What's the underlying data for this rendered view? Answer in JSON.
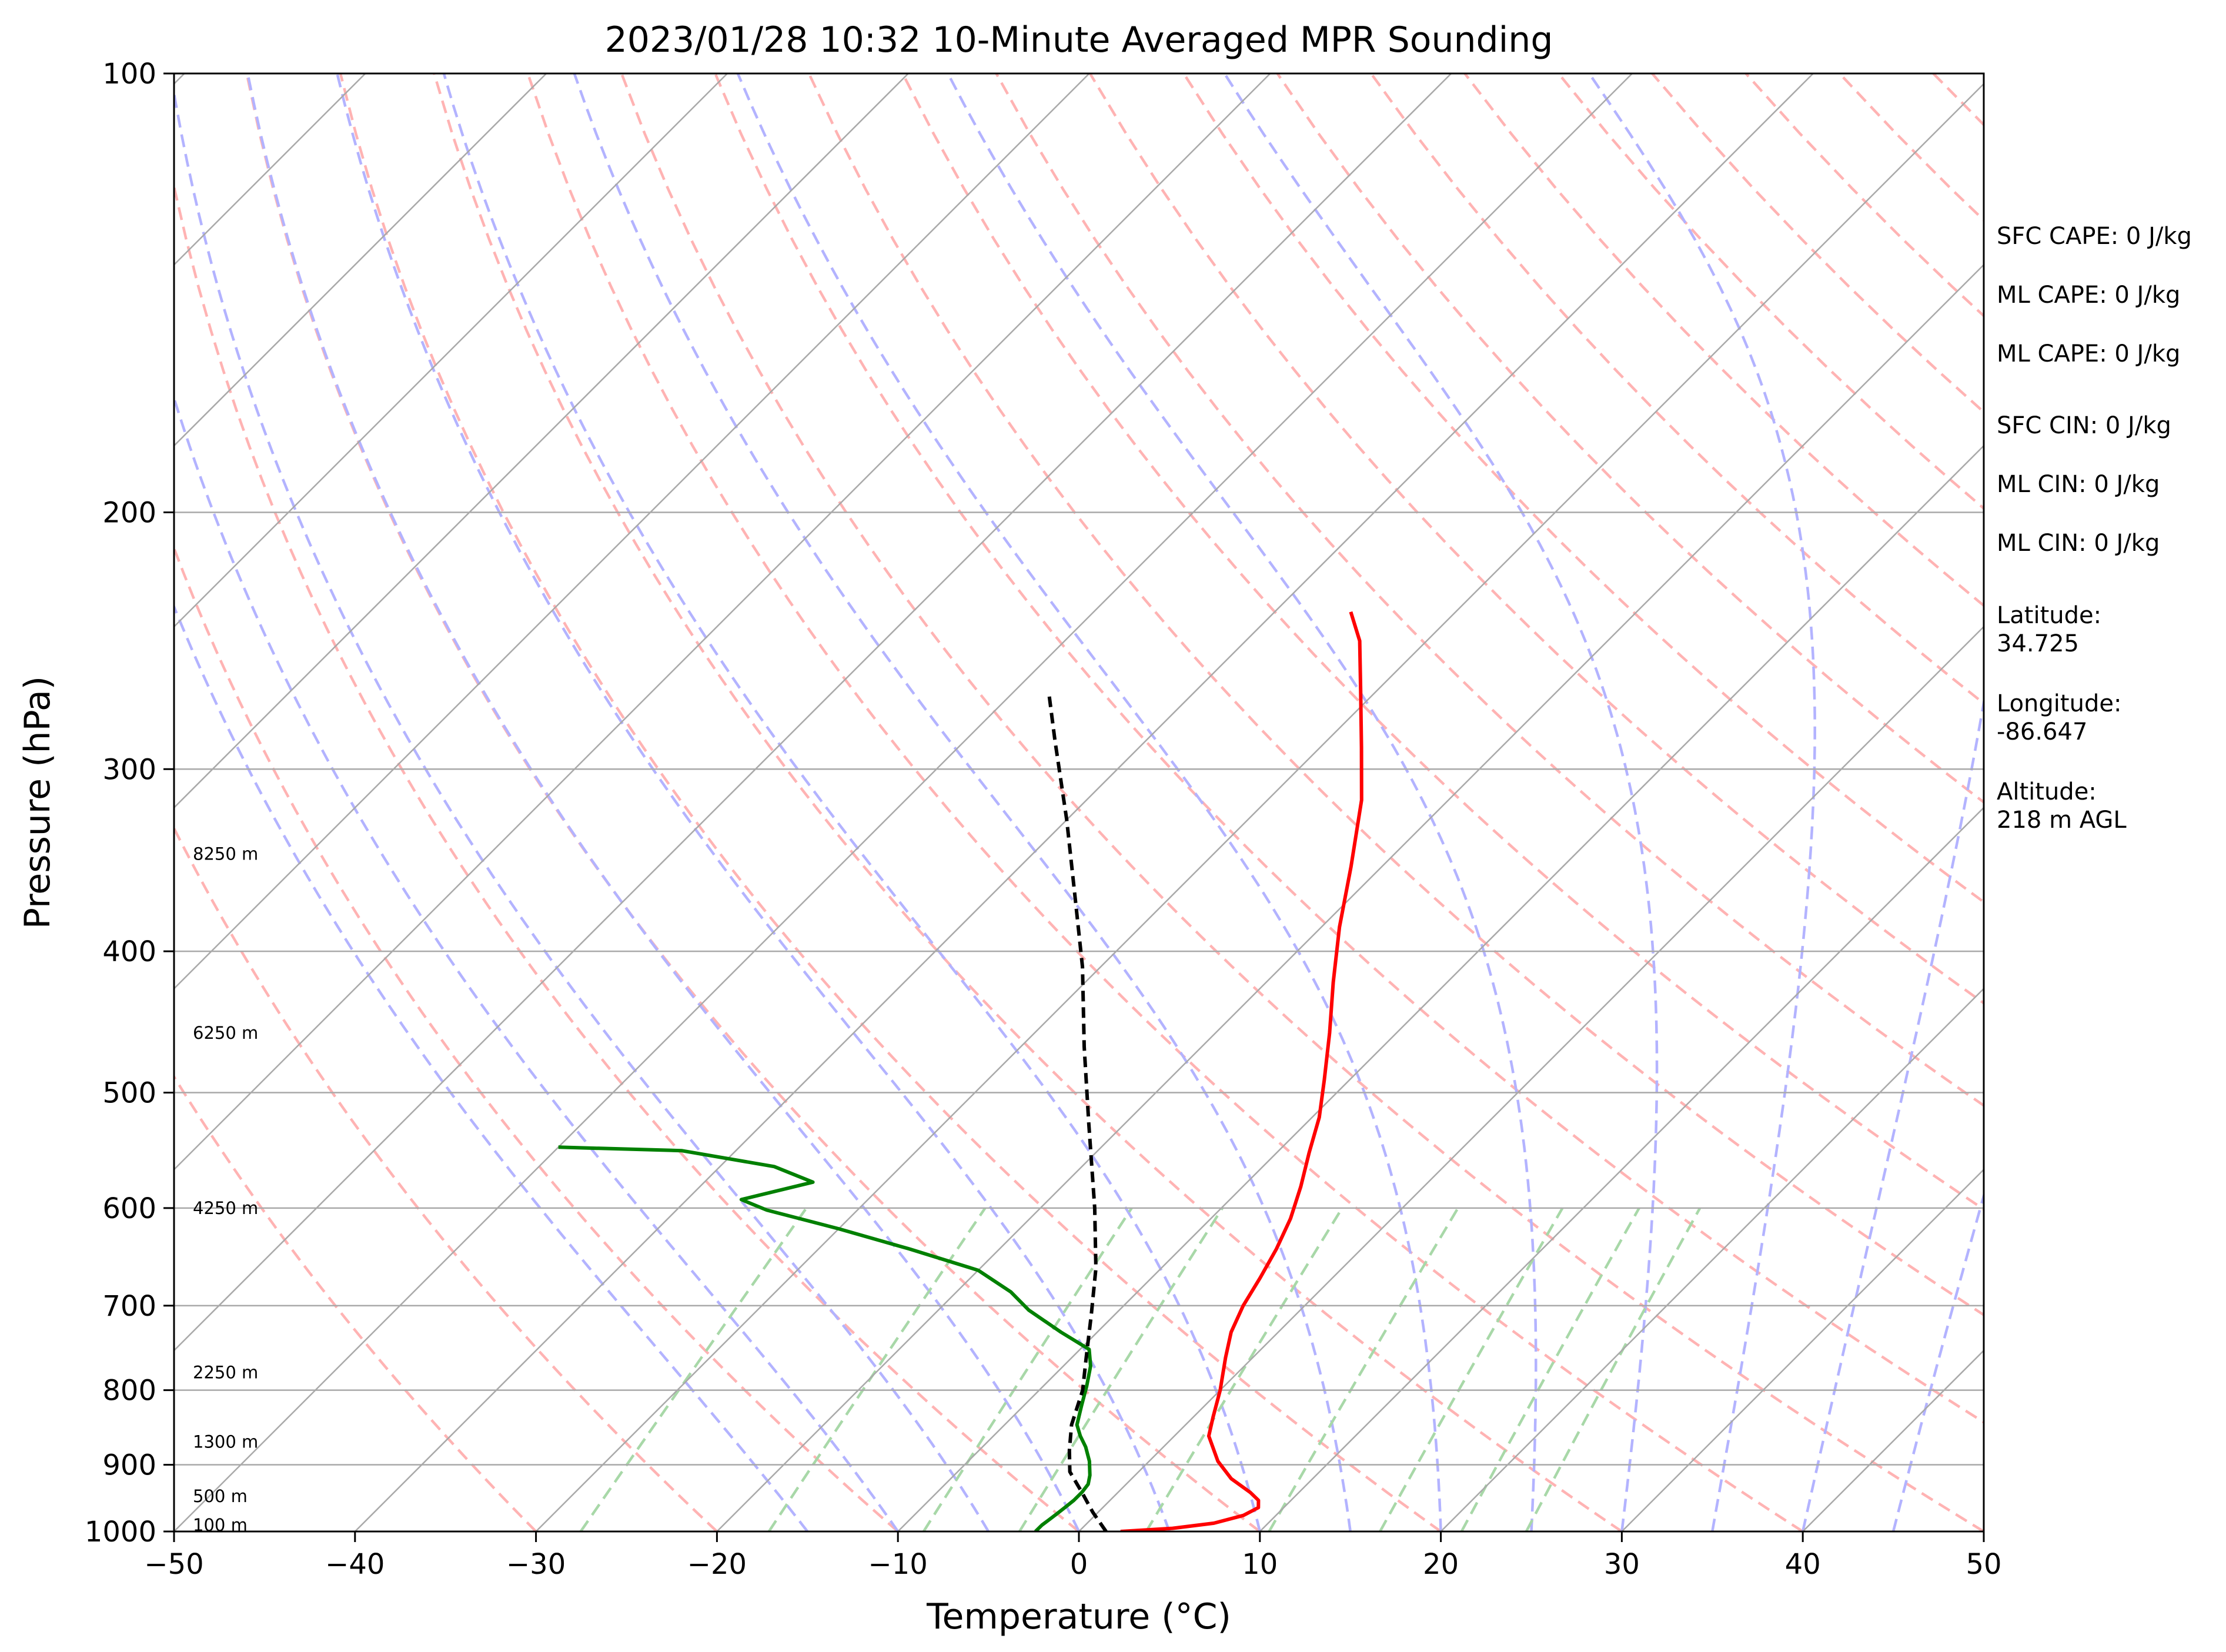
{
  "chart_data": {
    "type": "line",
    "title": "2023/01/28 10:32 10-Minute Averaged MPR Sounding",
    "xlabel": "Temperature (°C)",
    "ylabel": "Pressure (hPa)",
    "xlim": [
      -50,
      50
    ],
    "ylim": [
      1000,
      100
    ],
    "y_scale": "log",
    "grid": true,
    "x_ticks": [
      "−50",
      "−40",
      "−30",
      "−20",
      "−10",
      "0",
      "10",
      "20",
      "30",
      "40",
      "50"
    ],
    "y_ticks": [
      "100",
      "200",
      "300",
      "400",
      "500",
      "600",
      "700",
      "800",
      "900",
      "1000"
    ],
    "series": [
      {
        "color": "#ff0000",
        "points": [
          [
            2.3,
            1000
          ],
          [
            5.0,
            995
          ],
          [
            7.0,
            987
          ],
          [
            8.2,
            975
          ],
          [
            8.6,
            963
          ],
          [
            8.2,
            952
          ],
          [
            7.3,
            940
          ],
          [
            5.5,
            920
          ],
          [
            3.8,
            895
          ],
          [
            1.9,
            860
          ],
          [
            1.1,
            835
          ],
          [
            0.0,
            800
          ],
          [
            -1.5,
            760
          ],
          [
            -2.6,
            730
          ],
          [
            -3.4,
            700
          ],
          [
            -4.0,
            670
          ],
          [
            -4.7,
            640
          ],
          [
            -5.6,
            610
          ],
          [
            -6.8,
            580
          ],
          [
            -8.2,
            550
          ],
          [
            -9.6,
            520
          ],
          [
            -11.4,
            490
          ],
          [
            -13.7,
            455
          ],
          [
            -16.3,
            420
          ],
          [
            -19.0,
            385
          ],
          [
            -21.7,
            350
          ],
          [
            -24.8,
            315
          ],
          [
            -27.7,
            290
          ],
          [
            -30.9,
            265
          ],
          [
            -33.7,
            245
          ],
          [
            -35.8,
            234
          ]
        ]
      },
      {
        "color": "#008000",
        "points": [
          [
            -2.4,
            1000
          ],
          [
            -2.4,
            990
          ],
          [
            -2.3,
            982
          ],
          [
            -2.2,
            973
          ],
          [
            -2.1,
            963
          ],
          [
            -2.0,
            952
          ],
          [
            -2.0,
            940
          ],
          [
            -2.1,
            928
          ],
          [
            -2.5,
            915
          ],
          [
            -3.3,
            895
          ],
          [
            -4.3,
            875
          ],
          [
            -5.2,
            860
          ],
          [
            -6.0,
            845
          ],
          [
            -6.8,
            820
          ],
          [
            -7.6,
            795
          ],
          [
            -8.5,
            770
          ],
          [
            -9.5,
            750
          ],
          [
            -12.0,
            730
          ],
          [
            -15.0,
            705
          ],
          [
            -17.0,
            685
          ],
          [
            -20.0,
            662
          ],
          [
            -25.0,
            640
          ],
          [
            -30.0,
            620
          ],
          [
            -35.0,
            602
          ],
          [
            -37.0,
            592
          ],
          [
            -34.0,
            576
          ],
          [
            -37.0,
            562
          ],
          [
            -43.0,
            548
          ],
          [
            -50.0,
            545
          ]
        ]
      },
      {
        "color": "#000000",
        "dashed": true,
        "points": [
          [
            1.5,
            1000
          ],
          [
            -0.3,
            970
          ],
          [
            -2.0,
            940
          ],
          [
            -3.8,
            910
          ],
          [
            -5.0,
            880
          ],
          [
            -6.3,
            845
          ],
          [
            -7.6,
            800
          ],
          [
            -9.2,
            760
          ],
          [
            -11.3,
            710
          ],
          [
            -13.6,
            660
          ],
          [
            -17.0,
            600
          ],
          [
            -22.0,
            525
          ],
          [
            -26.5,
            465
          ],
          [
            -31.0,
            410
          ],
          [
            -35.5,
            365
          ],
          [
            -40.0,
            325
          ],
          [
            -45.0,
            287
          ],
          [
            -48.0,
            266
          ]
        ]
      }
    ],
    "height_labels": [
      {
        "text": "100 m",
        "pressure": 990
      },
      {
        "text": "500 m",
        "pressure": 946
      },
      {
        "text": "1300 m",
        "pressure": 868
      },
      {
        "text": "2250 m",
        "pressure": 778
      },
      {
        "text": "4250 m",
        "pressure": 600
      },
      {
        "text": "6250 m",
        "pressure": 455
      },
      {
        "text": "8250 m",
        "pressure": 343
      }
    ]
  },
  "info_panel": {
    "sfc_cape": "SFC CAPE: 0 J/kg",
    "ml_cape_1": "ML CAPE: 0 J/kg",
    "ml_cape_2": "ML CAPE: 0 J/kg",
    "sfc_cin": "SFC CIN: 0 J/kg",
    "ml_cin_1": "ML CIN: 0 J/kg",
    "ml_cin_2": "ML CIN: 0 J/kg",
    "latitude_label": "Latitude:",
    "latitude_value": "34.725",
    "longitude_label": "Longitude:",
    "longitude_value": "-86.647",
    "altitude_label": "Altitude:",
    "altitude_value": "218 m AGL"
  },
  "colors": {
    "temperature": "#ff0000",
    "dewpoint": "#008000",
    "parcel": "#000000",
    "isotherm": "#a9a9a9",
    "dry_adiabat": "#ffb3b3",
    "moist_adiabat": "#b3b3ff",
    "mixing_ratio": "#a8d8a8"
  }
}
